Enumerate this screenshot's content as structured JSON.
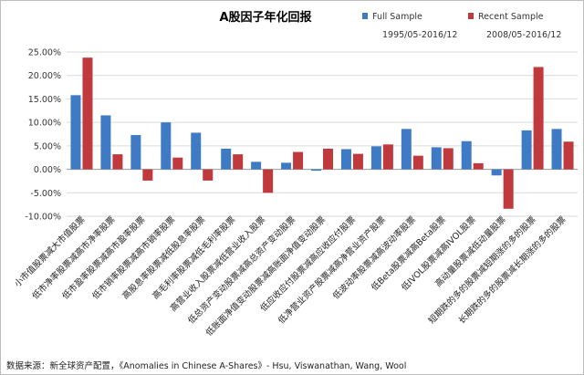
{
  "chart_data": {
    "type": "bar",
    "title": "A股因子年化回报",
    "series": [
      {
        "name": "Full Sample",
        "period": "1995/05-2016/12",
        "color": "#3E7BC4",
        "values": [
          15.8,
          11.5,
          7.3,
          10.0,
          7.8,
          4.4,
          1.6,
          1.4,
          -0.3,
          4.3,
          4.9,
          8.6,
          4.7,
          6.0,
          -1.3,
          8.3,
          8.6
        ]
      },
      {
        "name": "Recent Sample",
        "period": "2008/05-2016/12",
        "color": "#C0393D",
        "values": [
          23.8,
          3.2,
          -2.4,
          2.5,
          -2.4,
          3.2,
          -5.0,
          3.7,
          4.4,
          3.3,
          5.3,
          2.9,
          4.5,
          1.3,
          -8.4,
          21.8,
          5.9
        ]
      }
    ],
    "categories": [
      "小市值股票减大市值股票",
      "低市净率股票减高市净率股票",
      "低市盈率股票减高市盈率股票",
      "低市销率股票减高市销率股票",
      "高股息率股票减低股息率股票",
      "高毛利率股票减低毛利率股票",
      "高营业收入股票减低营业收入股票",
      "低总资产变动股票减高总资产变动股票",
      "低账面净值变动股票减高账面净值变动股票",
      "低应收应付股票减高应收应付股票",
      "低净营业资产股票减高净营业资产股票",
      "低波动率股票减高波动率股票",
      "低Beta股票减高Beta股票",
      "低IVOL股票减高IVOL股票",
      "高动量股票减低动量股票",
      "短期跌的多的股票减短期涨的多的股票",
      "长期跌的多的股票减长期涨的多的股票"
    ],
    "ylim": [
      -10,
      25
    ],
    "yticks": [
      -10,
      -5,
      0,
      5,
      10,
      15,
      20,
      25
    ],
    "ytick_labels": [
      "-10.00%",
      "-5.00%",
      "0.00%",
      "5.00%",
      "10.00%",
      "15.00%",
      "20.00%",
      "25.00%"
    ],
    "grid": true,
    "legend_position": "top-right"
  },
  "footer": "数据来源：新全球资产配置，《Anomalies in Chinese A-Shares》- Hsu, Viswanathan, Wang, Wool"
}
